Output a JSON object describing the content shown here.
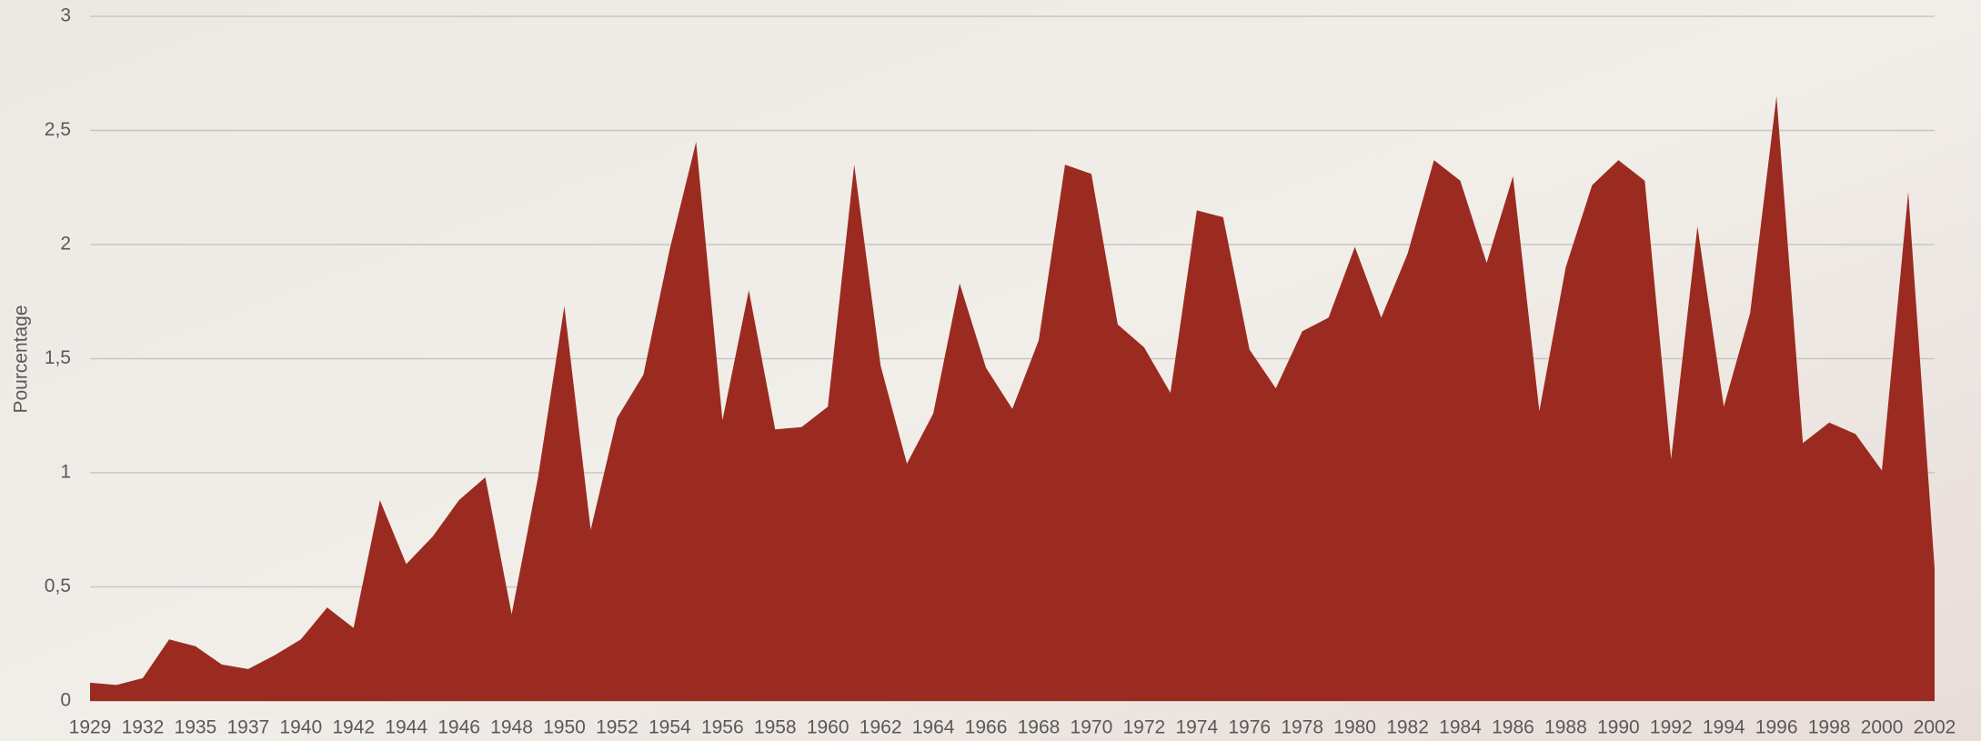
{
  "chart_data": {
    "type": "area",
    "y_label": "Pourcentage",
    "categories": [
      "1929",
      null,
      "1932",
      null,
      "1935",
      null,
      "1937",
      null,
      "1940",
      null,
      "1942",
      null,
      "1944",
      null,
      "1946",
      null,
      "1948",
      null,
      "1950",
      null,
      "1952",
      null,
      "1954",
      null,
      "1956",
      null,
      "1958",
      null,
      "1960",
      null,
      "1962",
      null,
      "1964",
      null,
      "1966",
      null,
      "1968",
      null,
      "1970",
      null,
      "1972",
      null,
      "1974",
      null,
      "1976",
      null,
      "1978",
      null,
      "1980",
      null,
      "1982",
      null,
      "1984",
      null,
      "1986",
      null,
      "1988",
      null,
      "1990",
      null,
      "1992",
      null,
      "1994",
      null,
      "1996",
      null,
      "1998",
      null,
      "2000",
      null,
      "2002"
    ],
    "values": [
      0.08,
      0.07,
      0.1,
      0.27,
      0.24,
      0.16,
      0.14,
      0.2,
      0.27,
      0.41,
      0.32,
      0.88,
      0.6,
      0.72,
      0.88,
      0.98,
      0.38,
      0.98,
      1.73,
      0.75,
      1.24,
      1.43,
      1.98,
      2.45,
      1.23,
      1.8,
      1.19,
      1.2,
      1.29,
      2.35,
      1.47,
      1.04,
      1.26,
      1.83,
      1.46,
      1.28,
      1.58,
      2.35,
      2.31,
      1.65,
      1.55,
      1.35,
      2.15,
      2.12,
      1.54,
      1.37,
      1.62,
      1.68,
      1.99,
      1.68,
      1.96,
      2.37,
      2.28,
      1.92,
      2.3,
      1.27,
      1.9,
      2.26,
      2.37,
      2.28,
      1.06,
      2.08,
      1.29,
      1.7,
      2.65,
      1.13,
      1.22,
      1.17,
      1.01,
      2.23,
      0.58
    ],
    "color": "#9b2b20",
    "ylim": [
      0,
      3
    ],
    "yticks": [
      0,
      {
        "value": 0.5,
        "label": "0,5"
      },
      1,
      {
        "value": 1.5,
        "label": "1,5"
      },
      2,
      {
        "value": 2.5,
        "label": "2,5"
      },
      3
    ],
    "grid": true
  }
}
